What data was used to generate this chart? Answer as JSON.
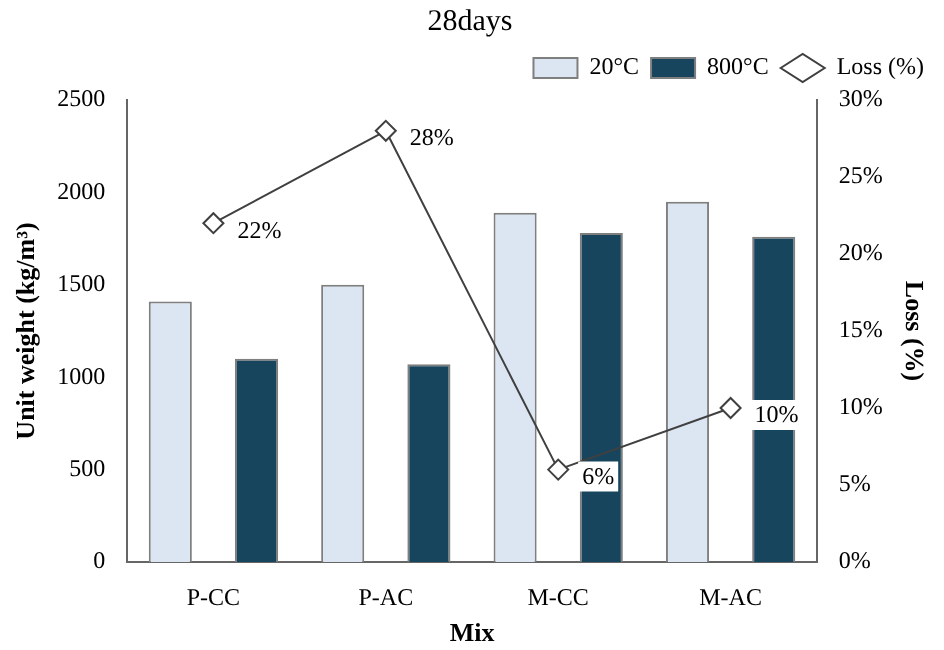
{
  "chart_data": {
    "type": "bar",
    "title": "28days",
    "xlabel": "Mix",
    "ylabel": "Unit weight (kg/m³)",
    "y2label": "Loss (%)",
    "categories": [
      "P-CC",
      "P-AC",
      "M-CC",
      "M-AC"
    ],
    "series": [
      {
        "name": "20°C",
        "color": "#dce6f2",
        "values": [
          1410,
          1500,
          1890,
          1950
        ]
      },
      {
        "name": "800°C",
        "color": "#17455e",
        "values": [
          1100,
          1070,
          1780,
          1760
        ]
      },
      {
        "name": "Loss (%)",
        "type": "line",
        "axis": "y2",
        "color": "#404040",
        "marker": "diamond",
        "values": [
          22,
          28,
          6,
          10
        ],
        "value_labels": [
          "22%",
          "28%",
          "6%",
          "10%"
        ]
      }
    ],
    "ylim": [
      0,
      2500
    ],
    "yticks": [
      0,
      500,
      1000,
      1500,
      2000,
      2500
    ],
    "y2lim": [
      0,
      30
    ],
    "y2ticks": [
      {
        "value": 0,
        "label": "0%"
      },
      {
        "value": 5,
        "label": "5%"
      },
      {
        "value": 10,
        "label": "10%"
      },
      {
        "value": 15,
        "label": "15%"
      },
      {
        "value": 20,
        "label": "20%"
      },
      {
        "value": 25,
        "label": "25%"
      },
      {
        "value": 30,
        "label": "30%"
      }
    ],
    "grid": false,
    "legend": "top right"
  }
}
